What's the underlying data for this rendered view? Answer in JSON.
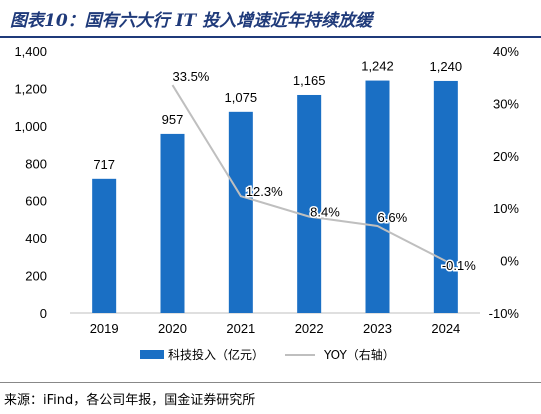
{
  "title": "图表10：国有六大行 IT 投入增速近年持续放缓",
  "source": "来源：iFind，各公司年报，国金证券研究所",
  "chart_data": {
    "type": "bar",
    "categories": [
      "2019",
      "2020",
      "2021",
      "2022",
      "2023",
      "2024"
    ],
    "series": [
      {
        "name": "科技投入（亿元）",
        "type": "bar",
        "axis": "left",
        "values": [
          717,
          957,
          1075,
          1165,
          1242,
          1240
        ],
        "labels": [
          "717",
          "957",
          "1,075",
          "1,165",
          "1,242",
          "1,240"
        ],
        "color": "#1a6fc4"
      },
      {
        "name": "YOY（右轴）",
        "type": "line",
        "axis": "right",
        "values": [
          null,
          33.5,
          12.3,
          8.4,
          6.6,
          -0.1
        ],
        "labels": [
          "",
          "33.5%",
          "12.3%",
          "8.4%",
          "6.6%",
          "-0.1%"
        ],
        "color": "#bfbfbf"
      }
    ],
    "y_left": {
      "min": 0,
      "max": 1400,
      "ticks": [
        "0",
        "200",
        "400",
        "600",
        "800",
        "1,000",
        "1,200",
        "1,400"
      ]
    },
    "y_right": {
      "min": -10,
      "max": 40,
      "ticks": [
        "-10%",
        "0%",
        "10%",
        "20%",
        "30%",
        "40%"
      ]
    },
    "grid": false,
    "legend": "bottom"
  }
}
